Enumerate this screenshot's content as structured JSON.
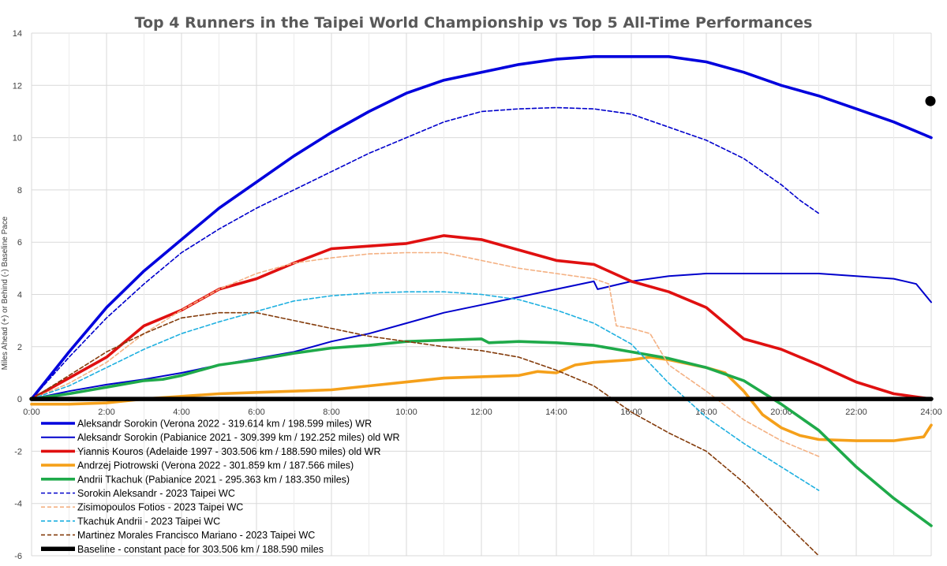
{
  "chart_data": {
    "type": "line",
    "title": "Top 4 Runners in the Taipei World Championship  vs  Top 5 All-Time Performances",
    "xlabel": "",
    "ylabel": "Miles Ahead (+) or Behind (-) Baseline Pace",
    "xlim": [
      0,
      24
    ],
    "ylim": [
      -6,
      14
    ],
    "x_tick_labels": [
      "0:00",
      "2:00",
      "4:00",
      "6:00",
      "8:00",
      "10:00",
      "12:00",
      "14:00",
      "16:00",
      "18:00",
      "20:00",
      "22:00",
      "24:00"
    ],
    "y_tick_labels": [
      "-6",
      "-4",
      "-2",
      "0",
      "2",
      "4",
      "6",
      "8",
      "10",
      "12",
      "14"
    ],
    "grid": true,
    "legend_position": "bottom-left",
    "series": [
      {
        "name": "Aleksandr Sorokin (Verona 2022 - 319.614 km / 198.599 miles)  WR",
        "color": "#0000dd",
        "dash": "solid",
        "weight": "thick",
        "points": [
          [
            0,
            0
          ],
          [
            1,
            1.8
          ],
          [
            2,
            3.5
          ],
          [
            3,
            4.9
          ],
          [
            4,
            6.1
          ],
          [
            5,
            7.3
          ],
          [
            6,
            8.3
          ],
          [
            7,
            9.3
          ],
          [
            8,
            10.2
          ],
          [
            9,
            11
          ],
          [
            10,
            11.7
          ],
          [
            11,
            12.2
          ],
          [
            12,
            12.5
          ],
          [
            13,
            12.8
          ],
          [
            14,
            13
          ],
          [
            15,
            13.1
          ],
          [
            16,
            13.1
          ],
          [
            17,
            13.1
          ],
          [
            18,
            12.9
          ],
          [
            19,
            12.5
          ],
          [
            20,
            12
          ],
          [
            21,
            11.6
          ],
          [
            22,
            11.1
          ],
          [
            23,
            10.6
          ],
          [
            24,
            10
          ]
        ]
      },
      {
        "name": "Aleksandr Sorokin (Pabianice 2021 - 309.399 km / 192.252 miles) old WR",
        "color": "#0000cc",
        "dash": "solid",
        "weight": "medium",
        "points": [
          [
            0,
            0
          ],
          [
            1,
            0.3
          ],
          [
            2,
            0.55
          ],
          [
            3,
            0.75
          ],
          [
            4,
            1
          ],
          [
            5,
            1.3
          ],
          [
            6,
            1.55
          ],
          [
            7,
            1.8
          ],
          [
            8,
            2.2
          ],
          [
            9,
            2.5
          ],
          [
            10,
            2.9
          ],
          [
            11,
            3.3
          ],
          [
            12,
            3.6
          ],
          [
            13,
            3.9
          ],
          [
            14,
            4.2
          ],
          [
            15,
            4.5
          ],
          [
            15.1,
            4.2
          ],
          [
            16,
            4.5
          ],
          [
            17,
            4.7
          ],
          [
            18,
            4.8
          ],
          [
            19,
            4.8
          ],
          [
            20,
            4.8
          ],
          [
            21,
            4.8
          ],
          [
            22,
            4.7
          ],
          [
            23,
            4.6
          ],
          [
            23.6,
            4.4
          ],
          [
            24,
            3.7
          ]
        ]
      },
      {
        "name": "Yiannis Kouros (Adelaide 1997 - 303.506 km / 188.590 miles) old WR",
        "color": "#e01010",
        "dash": "solid",
        "weight": "thick",
        "points": [
          [
            0,
            0
          ],
          [
            1,
            0.8
          ],
          [
            2,
            1.6
          ],
          [
            3,
            2.8
          ],
          [
            4,
            3.4
          ],
          [
            5,
            4.2
          ],
          [
            6,
            4.6
          ],
          [
            7,
            5.2
          ],
          [
            8,
            5.75
          ],
          [
            9,
            5.85
          ],
          [
            10,
            5.95
          ],
          [
            11,
            6.25
          ],
          [
            12,
            6.1
          ],
          [
            13,
            5.7
          ],
          [
            14,
            5.3
          ],
          [
            15,
            5.15
          ],
          [
            16,
            4.5
          ],
          [
            17,
            4.1
          ],
          [
            18,
            3.5
          ],
          [
            19,
            2.3
          ],
          [
            20,
            1.9
          ],
          [
            21,
            1.3
          ],
          [
            22,
            0.65
          ],
          [
            23,
            0.2
          ],
          [
            24,
            0
          ]
        ]
      },
      {
        "name": "Andrzej Piotrowski (Verona 2022 - 301.859 km / 187.566 miles)",
        "color": "#f5a01a",
        "dash": "solid",
        "weight": "thick",
        "points": [
          [
            0,
            -0.2
          ],
          [
            1,
            -0.2
          ],
          [
            2,
            -0.15
          ],
          [
            3,
            0
          ],
          [
            4,
            0.1
          ],
          [
            5,
            0.2
          ],
          [
            6,
            0.25
          ],
          [
            7,
            0.3
          ],
          [
            8,
            0.35
          ],
          [
            9,
            0.5
          ],
          [
            10,
            0.65
          ],
          [
            11,
            0.8
          ],
          [
            12,
            0.85
          ],
          [
            13,
            0.9
          ],
          [
            13.5,
            1.05
          ],
          [
            14,
            1
          ],
          [
            14.5,
            1.3
          ],
          [
            15,
            1.4
          ],
          [
            16,
            1.5
          ],
          [
            16.5,
            1.6
          ],
          [
            17,
            1.5
          ],
          [
            18,
            1.2
          ],
          [
            18.5,
            1
          ],
          [
            19,
            0.3
          ],
          [
            19.5,
            -0.6
          ],
          [
            20,
            -1.1
          ],
          [
            20.5,
            -1.4
          ],
          [
            21,
            -1.55
          ],
          [
            22,
            -1.6
          ],
          [
            23,
            -1.6
          ],
          [
            23.8,
            -1.45
          ],
          [
            24,
            -1
          ]
        ]
      },
      {
        "name": "Andrii Tkachuk (Pabianice 2021 - 295.363 km / 183.350 miles)",
        "color": "#1faa4a",
        "dash": "solid",
        "weight": "thick",
        "points": [
          [
            0,
            0
          ],
          [
            1,
            0.2
          ],
          [
            2,
            0.45
          ],
          [
            3,
            0.7
          ],
          [
            3.5,
            0.75
          ],
          [
            4,
            0.9
          ],
          [
            5,
            1.3
          ],
          [
            6,
            1.5
          ],
          [
            7,
            1.75
          ],
          [
            8,
            1.95
          ],
          [
            9,
            2.05
          ],
          [
            10,
            2.2
          ],
          [
            11,
            2.25
          ],
          [
            12,
            2.3
          ],
          [
            12.2,
            2.15
          ],
          [
            13,
            2.2
          ],
          [
            14,
            2.15
          ],
          [
            15,
            2.05
          ],
          [
            16,
            1.8
          ],
          [
            17,
            1.55
          ],
          [
            18,
            1.2
          ],
          [
            19,
            0.7
          ],
          [
            20,
            -0.2
          ],
          [
            21,
            -1.2
          ],
          [
            22,
            -2.6
          ],
          [
            23,
            -3.8
          ],
          [
            24,
            -4.85
          ]
        ]
      },
      {
        "name": "Sorokin Aleksandr - 2023 Taipei WC",
        "color": "#0000cc",
        "dash": "dashed",
        "weight": "thin",
        "points": [
          [
            0,
            0
          ],
          [
            1,
            1.6
          ],
          [
            2,
            3.1
          ],
          [
            3,
            4.4
          ],
          [
            4,
            5.6
          ],
          [
            5,
            6.5
          ],
          [
            6,
            7.3
          ],
          [
            7,
            8
          ],
          [
            8,
            8.7
          ],
          [
            9,
            9.4
          ],
          [
            10,
            10
          ],
          [
            11,
            10.6
          ],
          [
            12,
            11
          ],
          [
            13,
            11.1
          ],
          [
            14,
            11.15
          ],
          [
            15,
            11.1
          ],
          [
            16,
            10.9
          ],
          [
            17,
            10.4
          ],
          [
            18,
            9.9
          ],
          [
            19,
            9.2
          ],
          [
            20,
            8.2
          ],
          [
            20.5,
            7.6
          ],
          [
            21,
            7.1
          ]
        ]
      },
      {
        "name": "Zisimopoulos Fotios - 2023 Taipei WC",
        "color": "#f4b183",
        "dash": "dashed",
        "weight": "thin",
        "points": [
          [
            0,
            0
          ],
          [
            1,
            0.6
          ],
          [
            2,
            1.4
          ],
          [
            3,
            2.5
          ],
          [
            4,
            3.4
          ],
          [
            5,
            4.2
          ],
          [
            6,
            4.8
          ],
          [
            7,
            5.2
          ],
          [
            8,
            5.4
          ],
          [
            9,
            5.55
          ],
          [
            10,
            5.6
          ],
          [
            11,
            5.6
          ],
          [
            12,
            5.3
          ],
          [
            13,
            5
          ],
          [
            14,
            4.8
          ],
          [
            15,
            4.6
          ],
          [
            15.4,
            4.4
          ],
          [
            15.6,
            2.8
          ],
          [
            16,
            2.7
          ],
          [
            16.5,
            2.5
          ],
          [
            17,
            1.3
          ],
          [
            18,
            0.3
          ],
          [
            19,
            -0.8
          ],
          [
            20,
            -1.6
          ],
          [
            21,
            -2.2
          ]
        ]
      },
      {
        "name": "Tkachuk Andrii - 2023 Taipei WC",
        "color": "#1fb0e0",
        "dash": "dashed",
        "weight": "thin",
        "points": [
          [
            0,
            0
          ],
          [
            1,
            0.5
          ],
          [
            2,
            1.2
          ],
          [
            3,
            1.9
          ],
          [
            4,
            2.5
          ],
          [
            5,
            2.95
          ],
          [
            6,
            3.35
          ],
          [
            7,
            3.75
          ],
          [
            8,
            3.95
          ],
          [
            9,
            4.05
          ],
          [
            10,
            4.1
          ],
          [
            11,
            4.1
          ],
          [
            12,
            4
          ],
          [
            13,
            3.8
          ],
          [
            14,
            3.4
          ],
          [
            15,
            2.9
          ],
          [
            16,
            2.1
          ],
          [
            17,
            0.6
          ],
          [
            18,
            -0.7
          ],
          [
            19,
            -1.7
          ],
          [
            20,
            -2.6
          ],
          [
            21,
            -3.5
          ]
        ]
      },
      {
        "name": "Martinez Morales Francisco Mariano - 2023 Taipei WC",
        "color": "#843c0c",
        "dash": "dashed",
        "weight": "thin",
        "points": [
          [
            0,
            0
          ],
          [
            1,
            0.9
          ],
          [
            2,
            1.8
          ],
          [
            3,
            2.5
          ],
          [
            4,
            3.1
          ],
          [
            5,
            3.3
          ],
          [
            6,
            3.3
          ],
          [
            7,
            3
          ],
          [
            8,
            2.7
          ],
          [
            9,
            2.4
          ],
          [
            10,
            2.2
          ],
          [
            11,
            2
          ],
          [
            12,
            1.85
          ],
          [
            13,
            1.6
          ],
          [
            14,
            1.1
          ],
          [
            15,
            0.5
          ],
          [
            16,
            -0.5
          ],
          [
            17,
            -1.3
          ],
          [
            18,
            -2
          ],
          [
            19,
            -3.2
          ],
          [
            20,
            -4.6
          ],
          [
            21,
            -6
          ]
        ]
      },
      {
        "name": "Baseline - constant pace for 303.506 km / 188.590 miles",
        "color": "#000000",
        "dash": "solid",
        "weight": "baseline",
        "points": [
          [
            0,
            0
          ],
          [
            24,
            0
          ]
        ]
      }
    ],
    "markers": [
      {
        "x": 24,
        "y": 11.4,
        "color": "#000000"
      }
    ]
  }
}
